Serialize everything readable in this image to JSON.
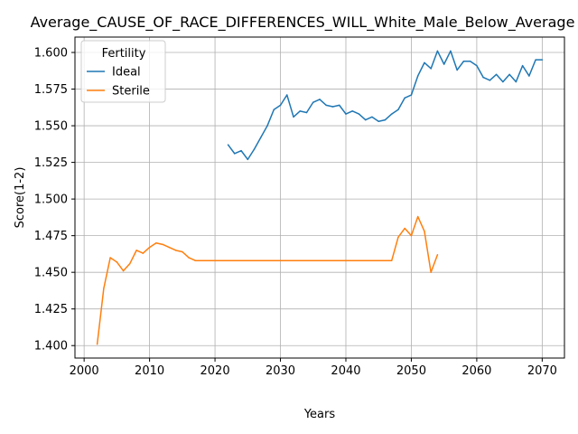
{
  "chart_data": {
    "type": "line",
    "title": "Average_CAUSE_OF_RACE_DIFFERENCES_WILL_White_Male_Below_Average",
    "xlabel": "Years",
    "ylabel": "Score(1-2)",
    "xlim": [
      1998.6,
      2073.4
    ],
    "ylim": [
      1.3915,
      1.6105
    ],
    "xticks": [
      2000,
      2010,
      2020,
      2030,
      2040,
      2050,
      2060,
      2070
    ],
    "yticks": [
      1.4,
      1.425,
      1.45,
      1.475,
      1.5,
      1.525,
      1.55,
      1.575,
      1.6
    ],
    "grid": true,
    "legend": {
      "title": "Fertility",
      "placement": "upper-left"
    },
    "series": [
      {
        "name": "Ideal",
        "color": "#1f77b4",
        "x": [
          2022,
          2023,
          2024,
          2025,
          2026,
          2027,
          2028,
          2029,
          2030,
          2031,
          2032,
          2033,
          2034,
          2035,
          2036,
          2037,
          2038,
          2039,
          2040,
          2041,
          2042,
          2043,
          2044,
          2045,
          2046,
          2047,
          2048,
          2049,
          2050,
          2051,
          2052,
          2053,
          2054,
          2055,
          2056,
          2057,
          2058,
          2059,
          2060,
          2061,
          2062,
          2063,
          2064,
          2065,
          2066,
          2067,
          2068,
          2069,
          2070
        ],
        "values": [
          1.537,
          1.531,
          1.533,
          1.527,
          1.534,
          1.542,
          1.55,
          1.561,
          1.564,
          1.571,
          1.556,
          1.56,
          1.559,
          1.566,
          1.568,
          1.564,
          1.563,
          1.564,
          1.558,
          1.56,
          1.558,
          1.554,
          1.556,
          1.553,
          1.554,
          1.558,
          1.561,
          1.569,
          1.571,
          1.584,
          1.593,
          1.589,
          1.601,
          1.592,
          1.601,
          1.588,
          1.594,
          1.594,
          1.591,
          1.583,
          1.581,
          1.585,
          1.58,
          1.585,
          1.58,
          1.591,
          1.584,
          1.595,
          1.595
        ]
      },
      {
        "name": "Sterile",
        "color": "#ff7f0e",
        "x": [
          2002,
          2003,
          2004,
          2005,
          2006,
          2007,
          2008,
          2009,
          2010,
          2011,
          2012,
          2013,
          2014,
          2015,
          2016,
          2017,
          2018,
          2019,
          2020,
          2021,
          2022,
          2023,
          2024,
          2025,
          2026,
          2027,
          2028,
          2029,
          2030,
          2031,
          2032,
          2033,
          2034,
          2035,
          2036,
          2037,
          2038,
          2039,
          2040,
          2041,
          2042,
          2043,
          2044,
          2045,
          2046,
          2047,
          2048,
          2049,
          2050,
          2051,
          2052,
          2053,
          2054
        ],
        "values": [
          1.401,
          1.439,
          1.46,
          1.457,
          1.451,
          1.456,
          1.465,
          1.463,
          1.467,
          1.47,
          1.469,
          1.467,
          1.465,
          1.464,
          1.46,
          1.458,
          1.458,
          1.458,
          1.458,
          1.458,
          1.458,
          1.458,
          1.458,
          1.458,
          1.458,
          1.458,
          1.458,
          1.458,
          1.458,
          1.458,
          1.458,
          1.458,
          1.458,
          1.458,
          1.458,
          1.458,
          1.458,
          1.458,
          1.458,
          1.458,
          1.458,
          1.458,
          1.458,
          1.458,
          1.458,
          1.458,
          1.474,
          1.48,
          1.475,
          1.488,
          1.478,
          1.45,
          1.462
        ]
      }
    ]
  }
}
